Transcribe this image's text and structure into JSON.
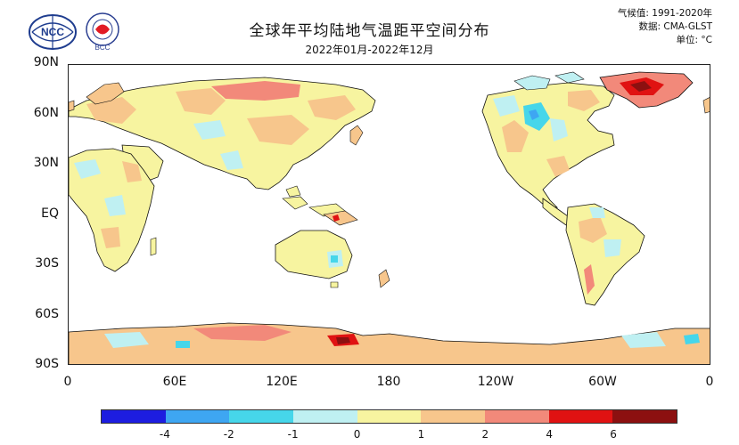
{
  "header": {
    "title": "全球年平均陆地气温距平空间分布",
    "subtitle": "2022年01月-2022年12月",
    "meta_lines": [
      "气候值: 1991-2020年",
      "数据: CMA-GLST",
      "单位: °C"
    ]
  },
  "logos": [
    {
      "name": "cma-logo",
      "text": "NCC"
    },
    {
      "name": "bcc-logo",
      "text": "BCC"
    }
  ],
  "map": {
    "lat_labels": [
      "90N",
      "60N",
      "30N",
      "EQ",
      "30S",
      "60S",
      "90S"
    ],
    "lon_labels": [
      "0",
      "60E",
      "120E",
      "180",
      "120W",
      "60W",
      "0"
    ],
    "ocean_color": "#ffffff",
    "coast_color": "#111111"
  },
  "colorbar": {
    "colors": [
      "#1d1de0",
      "#3ea6f2",
      "#46d6ea",
      "#bff0f2",
      "#f7f4a0",
      "#f7c68c",
      "#f2897a",
      "#e01212",
      "#8c1010"
    ],
    "labels": [
      "-4",
      "-2",
      "-1",
      "0",
      "1",
      "2",
      "4",
      "6"
    ]
  }
}
